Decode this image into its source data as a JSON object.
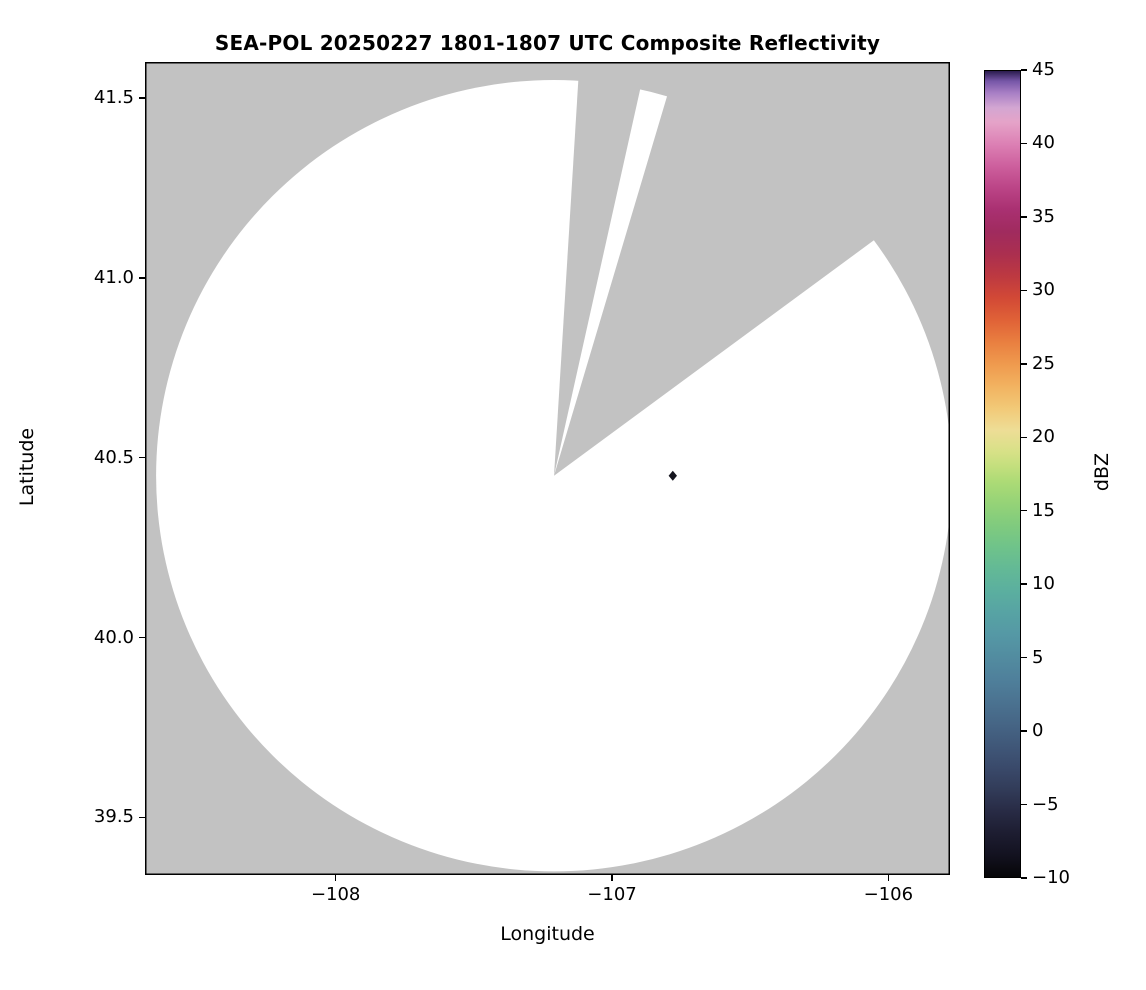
{
  "chart_data": {
    "type": "heatmap",
    "subtype": "radar-composite-reflectivity-map",
    "title": "SEA-POL 20250227 1801-1807 UTC Composite Reflectivity",
    "xlabel": "Longitude",
    "ylabel": "Latitude",
    "xlim": [
      -108.69,
      -105.777
    ],
    "ylim": [
      39.34,
      41.6
    ],
    "xticks": [
      -108,
      -107,
      -106
    ],
    "xtick_labels": [
      "−108",
      "−107",
      "−106"
    ],
    "yticks": [
      39.5,
      40.0,
      40.5,
      41.0,
      41.5
    ],
    "ytick_labels": [
      "39.5",
      "40.0",
      "40.5",
      "41.0",
      "41.5"
    ],
    "grid": false,
    "legend": "none",
    "colors": {
      "outside_coverage_gray": "#c2c2c2",
      "coverage_white": "#ffffff",
      "frame": "#000000",
      "text": "#000000"
    },
    "coverage": {
      "radar_center_lon": -107.21,
      "radar_center_lat": 40.45,
      "range_radius_deg_lon": 1.44,
      "range_radius_deg_lat": 1.1,
      "blocked_sectors_azimuth_deg": [
        {
          "start": 3.5,
          "end": 12.5
        },
        {
          "start": 16.5,
          "end": 54.0
        }
      ]
    },
    "echoes": [
      {
        "lon": -106.78,
        "lat": 40.45,
        "marker": "diamond",
        "color": "#15151f"
      }
    ],
    "colorbar": {
      "label": "dBZ",
      "min": -10,
      "max": 45,
      "tick_values": [
        45,
        40,
        35,
        30,
        25,
        20,
        15,
        10,
        5,
        0,
        -5,
        -10
      ],
      "tick_labels": [
        "45",
        "40",
        "35",
        "30",
        "25",
        "20",
        "15",
        "10",
        "5",
        "0",
        "−5",
        "−10"
      ],
      "stops": [
        {
          "v": -10,
          "c": "#060608"
        },
        {
          "v": -8.5,
          "c": "#131220"
        },
        {
          "v": -7,
          "c": "#1d1d31"
        },
        {
          "v": -5.5,
          "c": "#282b45"
        },
        {
          "v": -4,
          "c": "#323c59"
        },
        {
          "v": -2.5,
          "c": "#3a4a6b"
        },
        {
          "v": -1,
          "c": "#405879"
        },
        {
          "v": 0.5,
          "c": "#466686"
        },
        {
          "v": 2,
          "c": "#4b7391"
        },
        {
          "v": 3.5,
          "c": "#4f809b"
        },
        {
          "v": 5,
          "c": "#528ca0"
        },
        {
          "v": 6.5,
          "c": "#5598a5"
        },
        {
          "v": 8,
          "c": "#57a3a4"
        },
        {
          "v": 9.5,
          "c": "#5baf9f"
        },
        {
          "v": 11,
          "c": "#63b996"
        },
        {
          "v": 12.5,
          "c": "#6fc38a"
        },
        {
          "v": 14,
          "c": "#80cb7e"
        },
        {
          "v": 15.5,
          "c": "#95d377"
        },
        {
          "v": 17,
          "c": "#addb76"
        },
        {
          "v": 18,
          "c": "#c3df7d"
        },
        {
          "v": 19,
          "c": "#d7e187"
        },
        {
          "v": 20.5,
          "c": "#eedd96"
        },
        {
          "v": 22,
          "c": "#f2c977"
        },
        {
          "v": 23.5,
          "c": "#f2b260"
        },
        {
          "v": 25,
          "c": "#ef9a4e"
        },
        {
          "v": 26.5,
          "c": "#e97f40"
        },
        {
          "v": 28,
          "c": "#e06237"
        },
        {
          "v": 29.5,
          "c": "#d24936"
        },
        {
          "v": 31,
          "c": "#bd3941"
        },
        {
          "v": 32.5,
          "c": "#ab2f4f"
        },
        {
          "v": 34,
          "c": "#a02b5e"
        },
        {
          "v": 35.5,
          "c": "#a93071"
        },
        {
          "v": 37,
          "c": "#bb4486"
        },
        {
          "v": 38.5,
          "c": "#cd5f9d"
        },
        {
          "v": 40,
          "c": "#dc80b4"
        },
        {
          "v": 41.5,
          "c": "#e5a3c8"
        },
        {
          "v": 42.5,
          "c": "#d3a6d2"
        },
        {
          "v": 43.5,
          "c": "#a87fc5"
        },
        {
          "v": 44.3,
          "c": "#7757a8"
        },
        {
          "v": 45,
          "c": "#2a1b4e"
        }
      ]
    }
  }
}
